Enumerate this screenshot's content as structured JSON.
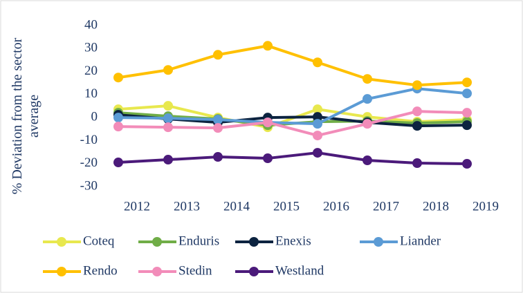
{
  "chart_data": {
    "type": "line",
    "y_label": "% Deviation from the sector average",
    "categories": [
      "2012",
      "2013",
      "2014",
      "2015",
      "2016",
      "2017",
      "2018",
      "2019"
    ],
    "ylim": [
      -30,
      40
    ],
    "yticks": [
      -30,
      -20,
      -10,
      0,
      10,
      20,
      30,
      40
    ],
    "grid": false,
    "series": [
      {
        "name": "Coteq",
        "color": "#e8e84e",
        "values": [
          3.6,
          5.1,
          0,
          -4.2,
          3.6,
          0.3,
          -1.8,
          -0.9
        ]
      },
      {
        "name": "Enduris",
        "color": "#70ad47",
        "values": [
          2.1,
          0.6,
          -0.6,
          -3.3,
          -1.8,
          -1.5,
          -2.4,
          -1.8
        ]
      },
      {
        "name": "Enexis",
        "color": "#0c2340",
        "values": [
          1.2,
          -0.6,
          -2.1,
          0,
          0.3,
          -2.1,
          -3.6,
          -3.3
        ]
      },
      {
        "name": "Liander",
        "color": "#5b9bd5",
        "values": [
          0,
          -0.3,
          -0.9,
          -2.1,
          -2.7,
          8.1,
          12.6,
          10.5
        ]
      },
      {
        "name": "Rendo",
        "color": "#ffc000",
        "values": [
          17.4,
          20.7,
          27.3,
          31.2,
          24,
          16.8,
          14.1,
          15.3
        ]
      },
      {
        "name": "Stedin",
        "color": "#f28cb9",
        "values": [
          -3.9,
          -4.2,
          -4.5,
          -2.1,
          -7.8,
          -2.7,
          2.7,
          2.1
        ]
      },
      {
        "name": "Westland",
        "color": "#4b1a7a",
        "values": [
          -19.5,
          -18.3,
          -17.1,
          -17.7,
          -15.3,
          -18.6,
          -19.8,
          -20.1
        ]
      }
    ]
  }
}
